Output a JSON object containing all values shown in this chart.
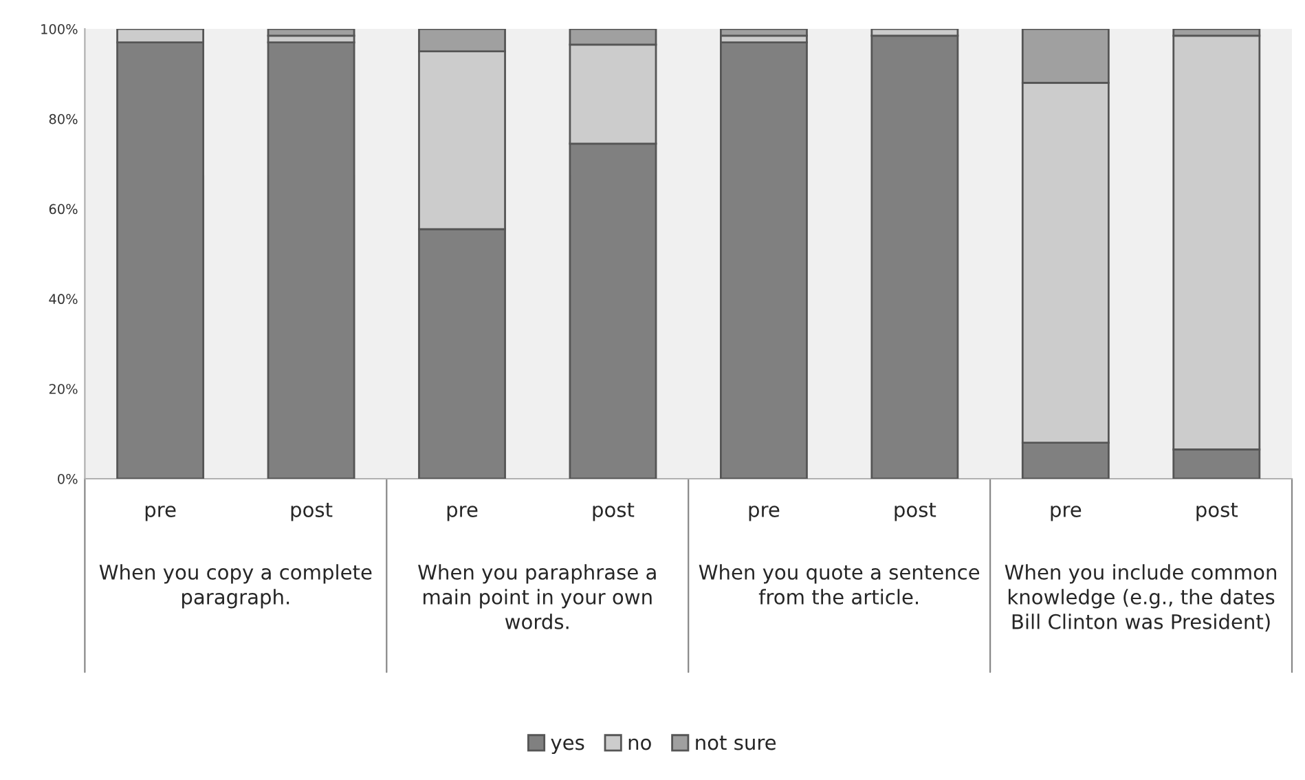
{
  "chart_data": {
    "type": "bar",
    "stacked": true,
    "categories": [
      "pre",
      "post",
      "pre",
      "post",
      "pre",
      "post",
      "pre",
      "post"
    ],
    "series": [
      {
        "name": "yes",
        "color": "#808080",
        "values": [
          97,
          97,
          55.5,
          74.5,
          97,
          98.5,
          8,
          6.5
        ]
      },
      {
        "name": "no",
        "color": "#cccccc",
        "values": [
          3,
          1.5,
          39.5,
          22,
          1.5,
          1.5,
          80,
          92
        ]
      },
      {
        "name": "not sure",
        "color": "#a0a0a0",
        "values": [
          0,
          1.5,
          5,
          3.5,
          1.5,
          0,
          12,
          1.5
        ]
      }
    ],
    "ylim": [
      0,
      100
    ],
    "yticks": [
      {
        "value": 0,
        "label": "0%"
      },
      {
        "value": 20,
        "label": "20%"
      },
      {
        "value": 40,
        "label": "40%"
      },
      {
        "value": 60,
        "label": "60%"
      },
      {
        "value": 80,
        "label": "80%"
      },
      {
        "value": 100,
        "label": "100%"
      }
    ],
    "annotations": [
      "When you copy a complete paragraph.",
      "When you paraphrase a main point in your own words.",
      "When you quote a sentence from the article.",
      "When you include common knowledge (e.g., the dates Bill Clinton was President)"
    ],
    "grid": false,
    "legend": "bottom"
  }
}
